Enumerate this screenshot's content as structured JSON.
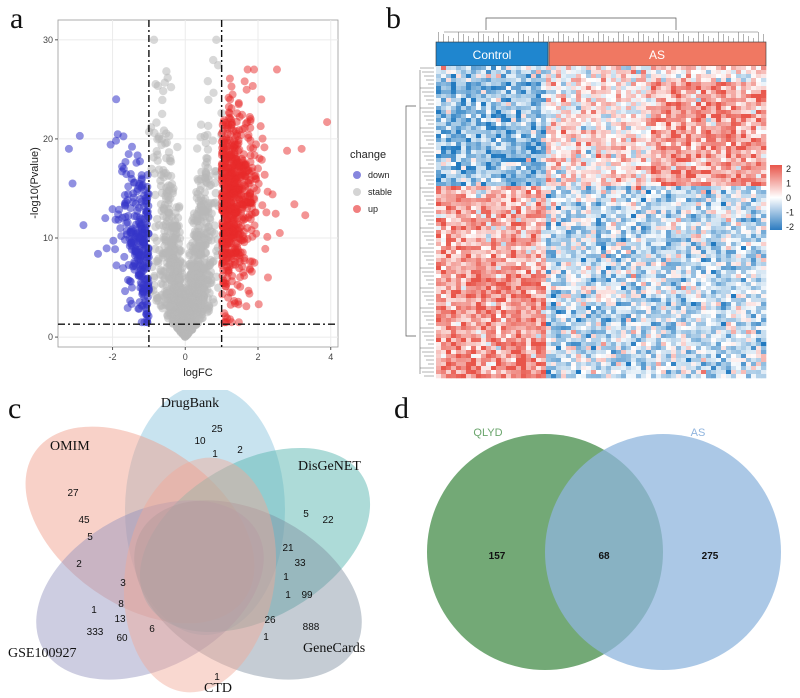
{
  "panels": {
    "a": {
      "letter": "a"
    },
    "b": {
      "letter": "b"
    },
    "c": {
      "letter": "c"
    },
    "d": {
      "letter": "d"
    }
  },
  "volcano": {
    "chart_data": {
      "type": "scatter",
      "xlabel": "logFC",
      "ylabel": "-log10(Pvalue)",
      "xticks": [
        -2,
        0,
        2,
        4
      ],
      "yticks": [
        0,
        10,
        20,
        30
      ],
      "xlim": [
        -3.5,
        4.2
      ],
      "ylim": [
        -1,
        32
      ],
      "thresholds": {
        "logfc": [
          -1,
          1
        ],
        "neglog10p": 1.3
      },
      "legend": {
        "title": "change",
        "placement": "right"
      },
      "series": [
        {
          "name": "down",
          "color": "#3535c8"
        },
        {
          "name": "stable",
          "color": "#b8b8b8"
        },
        {
          "name": "up",
          "color": "#e82a2a"
        }
      ],
      "grid": true
    }
  },
  "heatmap": {
    "chart_data": {
      "type": "heatmap",
      "groups": [
        {
          "name": "Control",
          "color": "#1f86cf"
        },
        {
          "name": "AS",
          "color": "#f07862"
        }
      ],
      "colorbar_ticks": [
        "2",
        "1",
        "0",
        "-1",
        "-2"
      ],
      "colors": {
        "low": "#2c7bc0",
        "mid": "#ffffff",
        "high": "#e8554a"
      }
    }
  },
  "venn5": {
    "sets": [
      "DrugBank",
      "OMIM",
      "DisGeNET",
      "GSE100927",
      "GeneCards",
      "CTD"
    ],
    "numbers": [
      "25",
      "10",
      "1",
      "2",
      "27",
      "45",
      "5",
      "2",
      "5",
      "22",
      "21",
      "33",
      "1",
      "1",
      "99",
      "888",
      "26",
      "1",
      "3",
      "8",
      "13",
      "1",
      "333",
      "60",
      "6",
      "1"
    ]
  },
  "venn2": {
    "sets": [
      {
        "name": "QLYD",
        "color": "#5a9a5e",
        "label_color": "#6aa56c"
      },
      {
        "name": "AS",
        "color": "#8fb6de",
        "label_color": "#8fb4de"
      }
    ],
    "only_left": "157",
    "overlap": "68",
    "only_right": "275"
  }
}
